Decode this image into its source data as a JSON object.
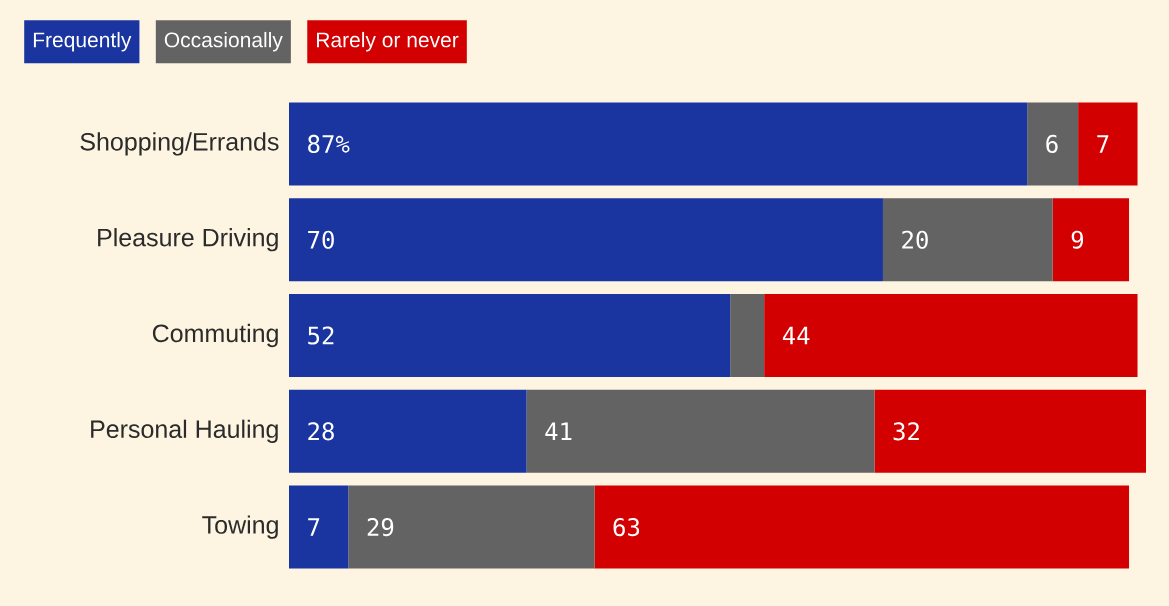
{
  "chart_data": {
    "type": "bar",
    "orientation": "horizontal",
    "stacked": true,
    "legend": "top left",
    "categories": [
      "Shopping/Errands",
      "Pleasure Driving",
      "Commuting",
      "Personal Hauling",
      "Towing"
    ],
    "series": [
      {
        "name": "Frequently",
        "color": "#1a35a0",
        "values": [
          87,
          70,
          52,
          28,
          7
        ],
        "value_labels": [
          "87%",
          "70",
          "52",
          "28",
          "7"
        ]
      },
      {
        "name": "Occasionally",
        "color": "#636363",
        "values": [
          6,
          20,
          4,
          41,
          29
        ],
        "value_labels": [
          "6",
          "20",
          null,
          "41",
          "29"
        ]
      },
      {
        "name": "Rarely or never",
        "color": "#d20000",
        "values": [
          7,
          9,
          44,
          32,
          63
        ],
        "value_labels": [
          "7",
          "9",
          "44",
          "32",
          "63"
        ]
      }
    ]
  }
}
